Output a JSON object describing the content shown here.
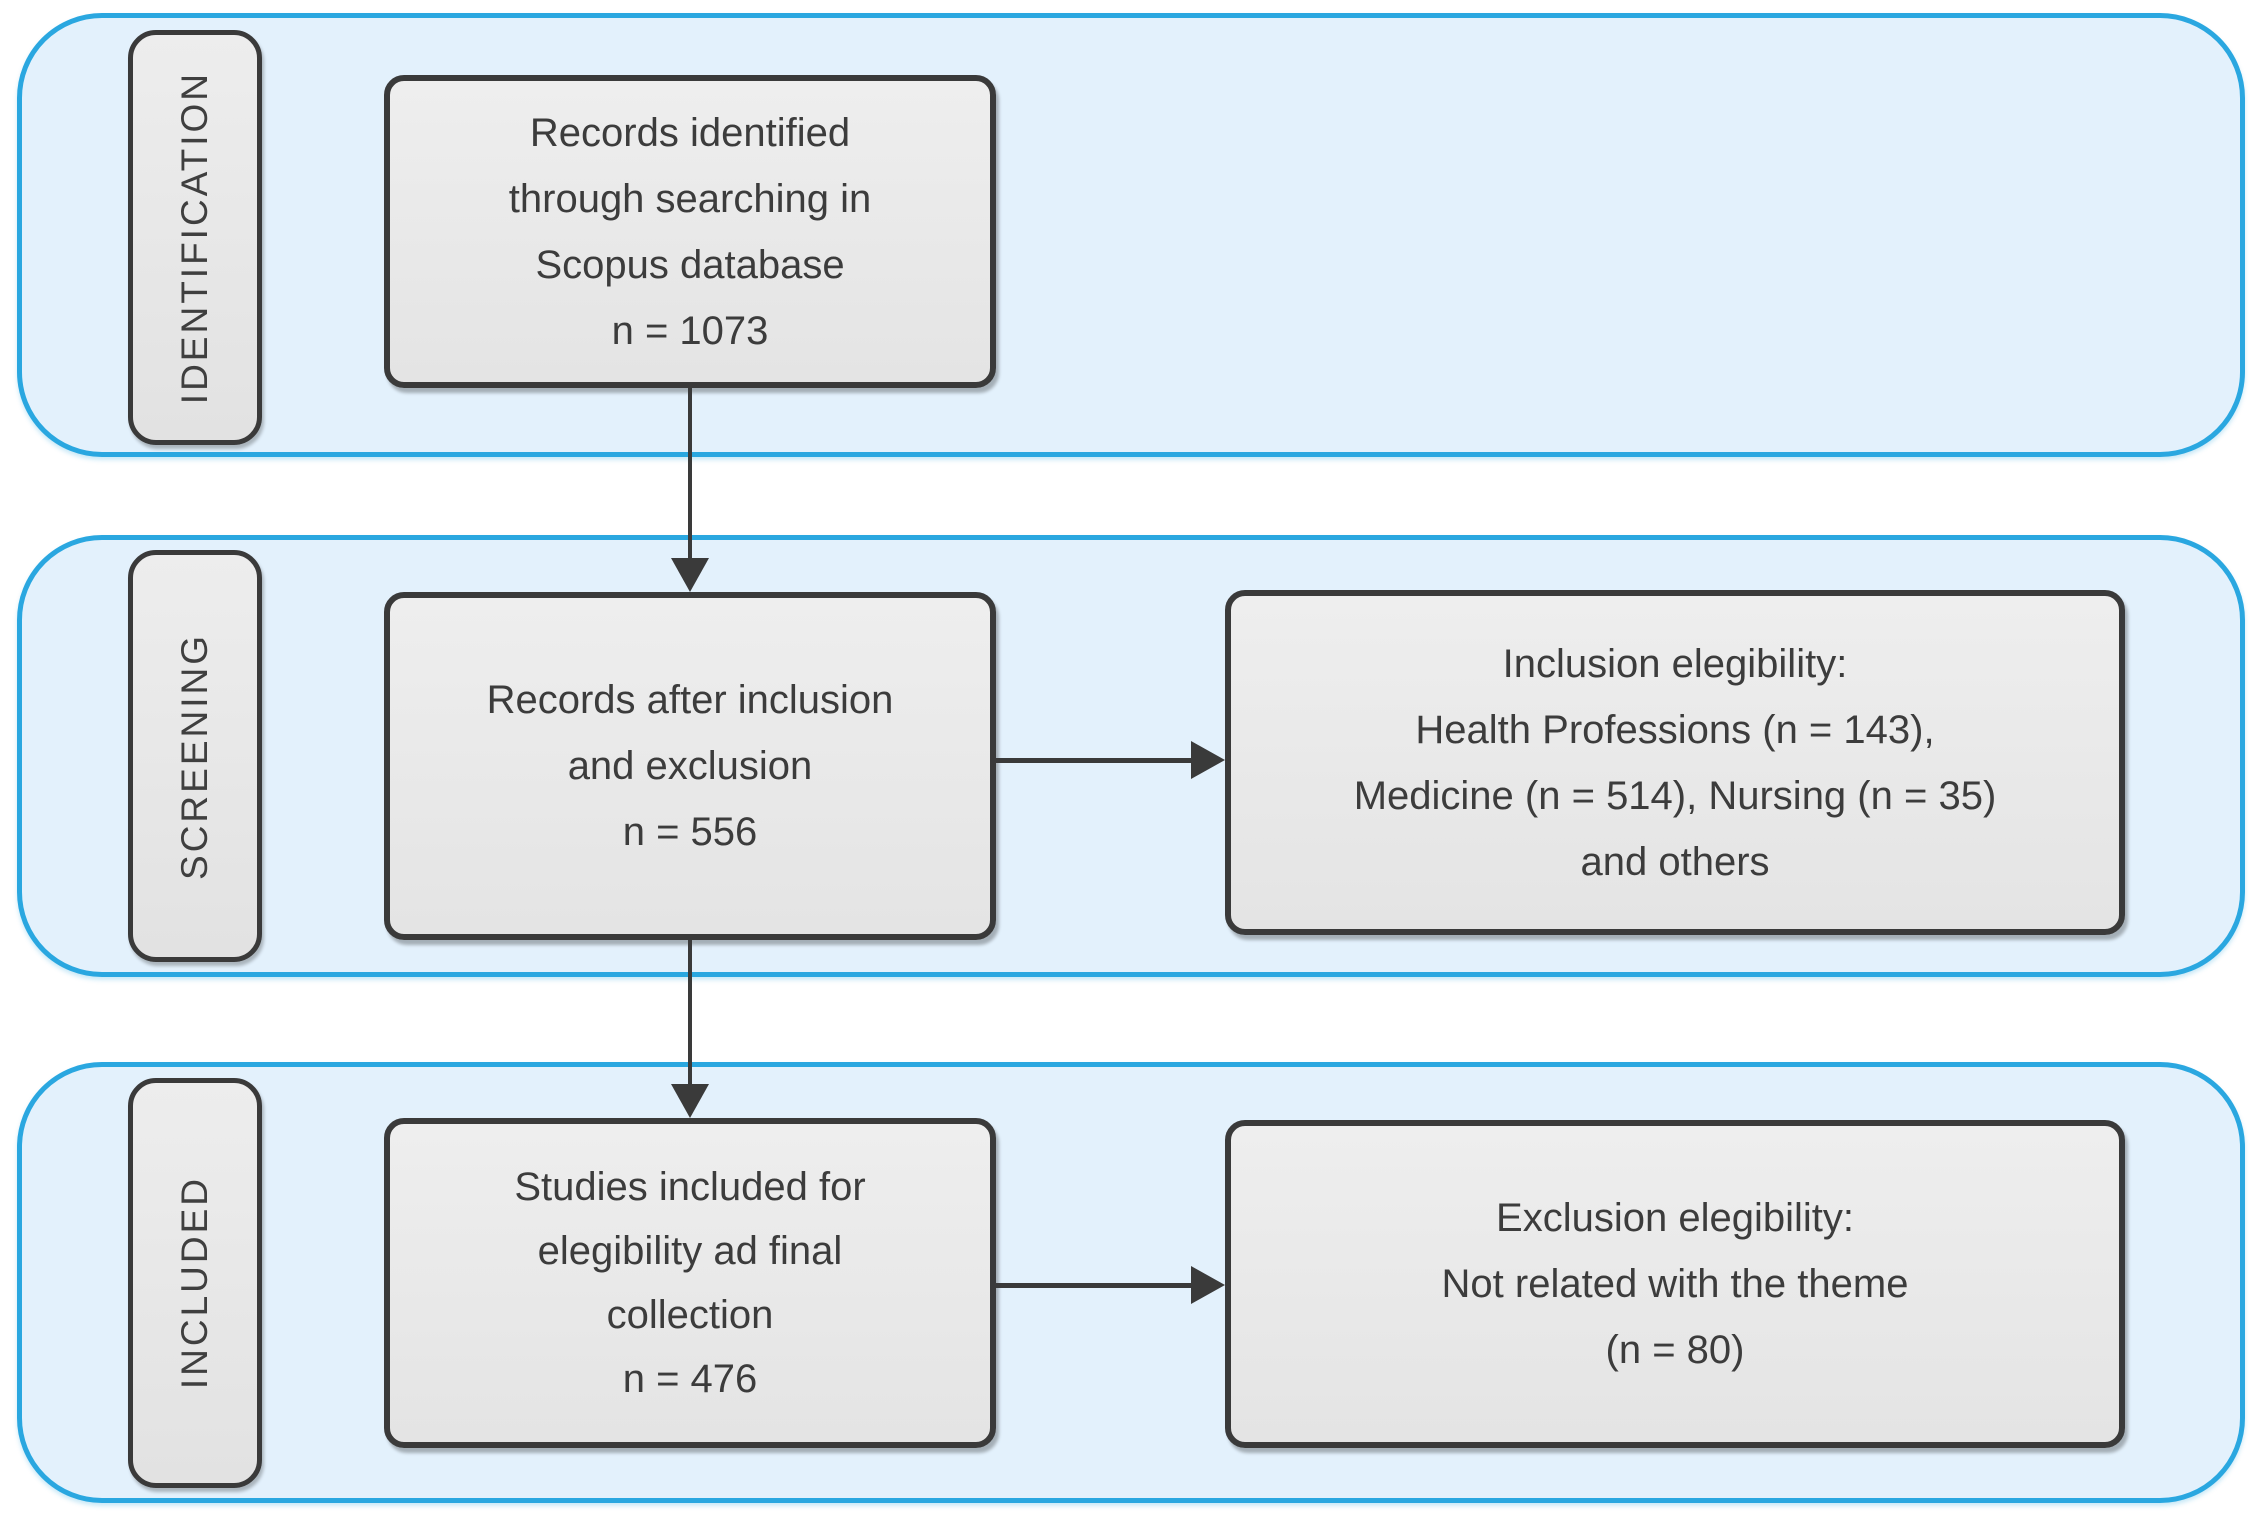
{
  "diagram": {
    "type": "prisma-flow",
    "colors": {
      "band_fill": "#e3f1fc",
      "band_border": "#2aa7e0",
      "box_fill": "#e9e9e9",
      "box_border": "#3a3a3a",
      "text": "#3c3c3c",
      "arrow": "#3a3a3a",
      "page_background": "#ffffff"
    },
    "bands": [
      {
        "label": "IDENTIFICATION",
        "boxes": [
          {
            "id": "records-identified",
            "lines": [
              "Records identified",
              "through searching in",
              "Scopus database",
              "n = 1073"
            ]
          }
        ]
      },
      {
        "label": "SCREENING",
        "boxes": [
          {
            "id": "records-after-inclusion-exclusion",
            "lines": [
              "Records after inclusion",
              "and exclusion",
              "n = 556"
            ]
          },
          {
            "id": "inclusion-elegibility",
            "lines": [
              "Inclusion elegibility:",
              "Health Professions (n = 143),",
              "Medicine (n = 514), Nursing (n = 35)",
              "and others"
            ]
          }
        ]
      },
      {
        "label": "INCLUDED",
        "boxes": [
          {
            "id": "studies-included",
            "lines": [
              "Studies included for",
              "elegibility ad final",
              "collection",
              "n = 476"
            ]
          },
          {
            "id": "exclusion-elegibility",
            "lines": [
              "Exclusion elegibility:",
              "Not related with the theme",
              "(n = 80)"
            ]
          }
        ]
      }
    ]
  }
}
